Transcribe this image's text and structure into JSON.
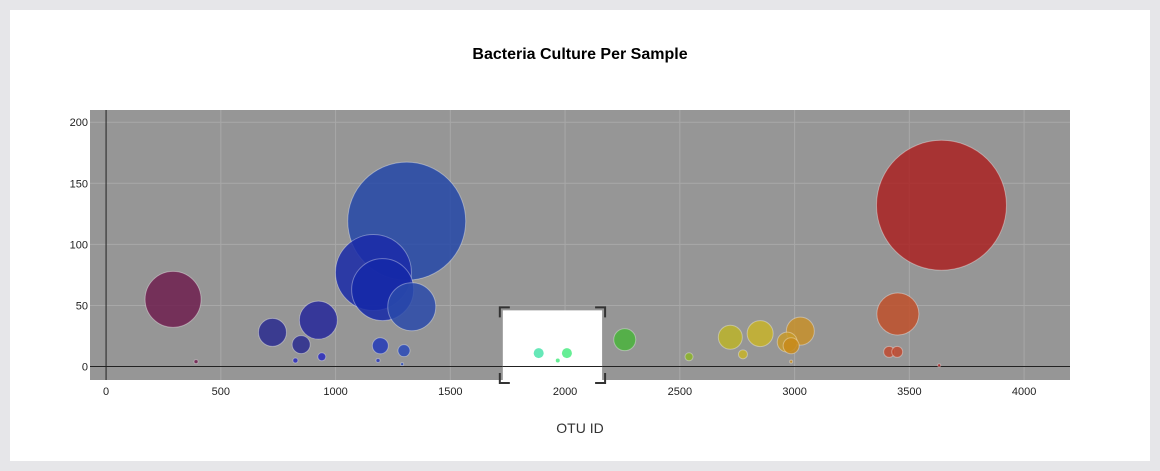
{
  "chart_data": {
    "type": "scatter",
    "title": "Bacteria Culture Per Sample",
    "xlabel": "OTU ID",
    "ylabel": "",
    "xlim": [
      -70,
      4200
    ],
    "ylim": [
      -11,
      210
    ],
    "x_ticks": [
      0,
      500,
      1000,
      1500,
      2000,
      2500,
      3000,
      3500,
      4000
    ],
    "y_ticks": [
      0,
      50,
      100,
      150,
      200
    ],
    "grid": true,
    "plot_background": "#969696",
    "selection_box": {
      "x_range": [
        1720,
        2170
      ],
      "y_range": [
        -11,
        46
      ]
    },
    "series": [
      {
        "points": [
          {
            "x": 292,
            "y": 55,
            "r": 28,
            "color": "#6e1f4f"
          },
          {
            "x": 392,
            "y": 4,
            "r": 2,
            "color": "#6e1f4f"
          },
          {
            "x": 725,
            "y": 28,
            "r": 14,
            "color": "#2a2b8f"
          },
          {
            "x": 850,
            "y": 18,
            "r": 9,
            "color": "#2a2b8f"
          },
          {
            "x": 925,
            "y": 38,
            "r": 19,
            "color": "#26279a"
          },
          {
            "x": 825,
            "y": 5,
            "r": 2.5,
            "color": "#2a2bbd"
          },
          {
            "x": 940,
            "y": 8,
            "r": 4,
            "color": "#2a2bbd"
          },
          {
            "x": 1165,
            "y": 77,
            "r": 38,
            "color": "#1a2aa8"
          },
          {
            "x": 1310,
            "y": 119,
            "r": 59,
            "color": "#2448a8"
          },
          {
            "x": 1205,
            "y": 63,
            "r": 31,
            "color": "#1428a8"
          },
          {
            "x": 1332,
            "y": 49,
            "r": 24,
            "color": "#2a4aaa"
          },
          {
            "x": 1195,
            "y": 17,
            "r": 8,
            "color": "#2239b8"
          },
          {
            "x": 1298,
            "y": 13,
            "r": 6,
            "color": "#2a4ab8"
          },
          {
            "x": 1185,
            "y": 5,
            "r": 2,
            "color": "#2a3ab8"
          },
          {
            "x": 1290,
            "y": 2,
            "r": 1.5,
            "color": "#2a4ab8"
          },
          {
            "x": 1885,
            "y": 11,
            "r": 5,
            "color": "#55e6b0"
          },
          {
            "x": 2008,
            "y": 11,
            "r": 5,
            "color": "#55ec8a"
          },
          {
            "x": 1968,
            "y": 5,
            "r": 2,
            "color": "#55ec8a"
          },
          {
            "x": 2260,
            "y": 22,
            "r": 11,
            "color": "#4ab43c"
          },
          {
            "x": 2540,
            "y": 8,
            "r": 4,
            "color": "#8cb42a"
          },
          {
            "x": 2720,
            "y": 24,
            "r": 12,
            "color": "#bcb42a"
          },
          {
            "x": 2850,
            "y": 27,
            "r": 13,
            "color": "#c8b42a"
          },
          {
            "x": 2775,
            "y": 10,
            "r": 4.5,
            "color": "#c8b42a"
          },
          {
            "x": 2968,
            "y": 20,
            "r": 10,
            "color": "#c89a2a"
          },
          {
            "x": 3025,
            "y": 29,
            "r": 14,
            "color": "#c8902a"
          },
          {
            "x": 2985,
            "y": 17,
            "r": 8,
            "color": "#c88a1a"
          },
          {
            "x": 2985,
            "y": 4,
            "r": 1.5,
            "color": "#c88a1a"
          },
          {
            "x": 3450,
            "y": 43,
            "r": 21,
            "color": "#c0502a"
          },
          {
            "x": 3412,
            "y": 12,
            "r": 5.5,
            "color": "#c04a30"
          },
          {
            "x": 3447,
            "y": 12,
            "r": 5.5,
            "color": "#c04a30"
          },
          {
            "x": 3640,
            "y": 132,
            "r": 65,
            "color": "#aa2222"
          },
          {
            "x": 3630,
            "y": 1,
            "r": 1.5,
            "color": "#aa2222"
          }
        ]
      }
    ]
  }
}
